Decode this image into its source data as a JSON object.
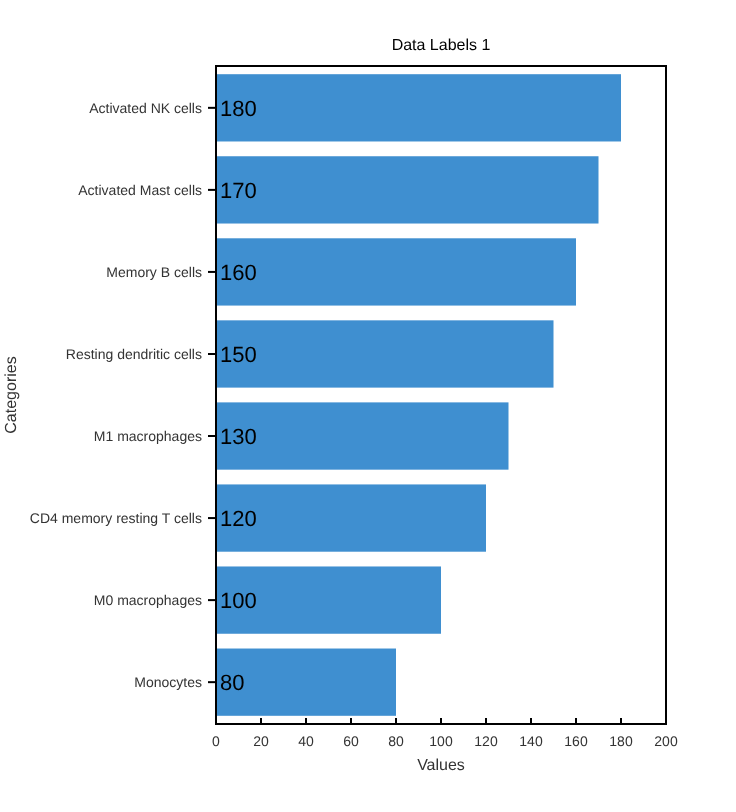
{
  "chart_data": {
    "type": "bar",
    "orientation": "horizontal",
    "title": "Data Labels 1",
    "xlabel": "Values",
    "ylabel": "Categories",
    "categories": [
      "Activated NK cells",
      "Activated Mast cells",
      "Memory B cells",
      "Resting dendritic cells",
      "M1 macrophages",
      "CD4 memory resting T cells",
      "M0 macrophages",
      "Monocytes"
    ],
    "values": [
      180,
      170,
      160,
      150,
      130,
      120,
      100,
      80
    ],
    "color": "#3f8fd0",
    "xlim": [
      0,
      200
    ],
    "xticks": [
      0,
      20,
      40,
      60,
      80,
      100,
      120,
      140,
      160,
      180,
      200
    ],
    "data_labels": true
  }
}
